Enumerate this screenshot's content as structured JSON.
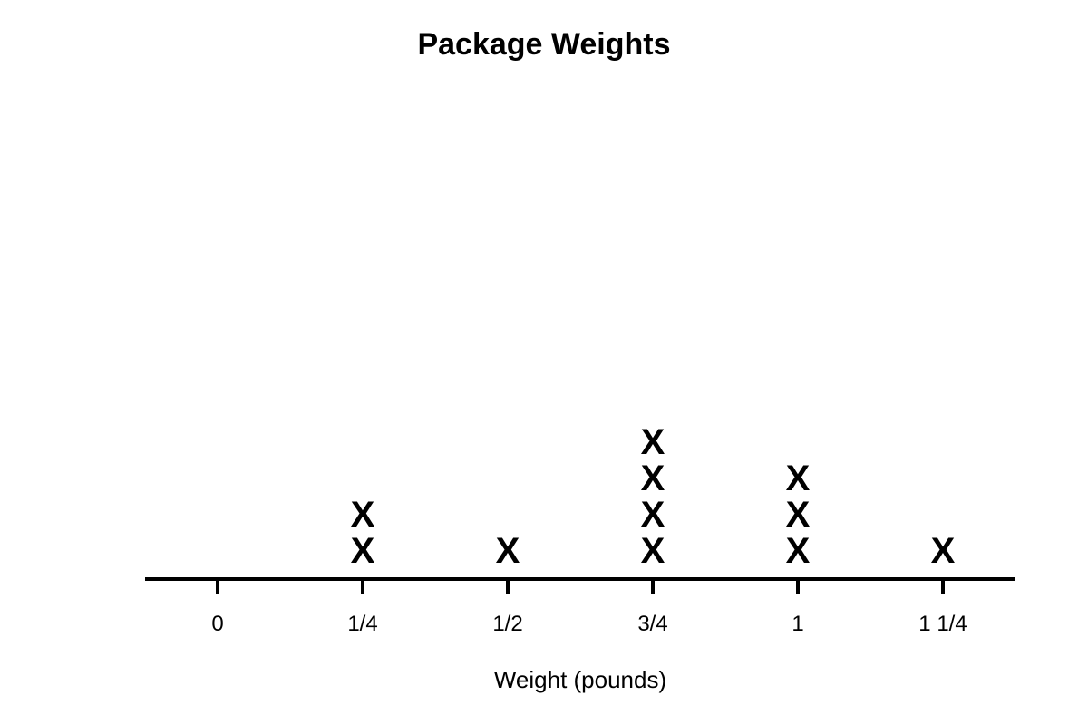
{
  "chart_data": {
    "type": "dot-plot",
    "title": "Package Weights",
    "xlabel": "Weight (pounds)",
    "ylabel": "",
    "marker": "X",
    "ticks": [
      {
        "value": 0,
        "label": "0"
      },
      {
        "value": 0.25,
        "label": "1/4"
      },
      {
        "value": 0.5,
        "label": "1/2"
      },
      {
        "value": 0.75,
        "label": "3/4"
      },
      {
        "value": 1,
        "label": "1"
      },
      {
        "value": 1.25,
        "label": "1 1/4"
      }
    ],
    "xlim": [
      -0.125,
      1.375
    ],
    "points": [
      {
        "x": 0.25,
        "count": 2
      },
      {
        "x": 0.5,
        "count": 1
      },
      {
        "x": 0.75,
        "count": 4
      },
      {
        "x": 1,
        "count": 3
      },
      {
        "x": 1.25,
        "count": 1
      }
    ],
    "grid": false
  }
}
